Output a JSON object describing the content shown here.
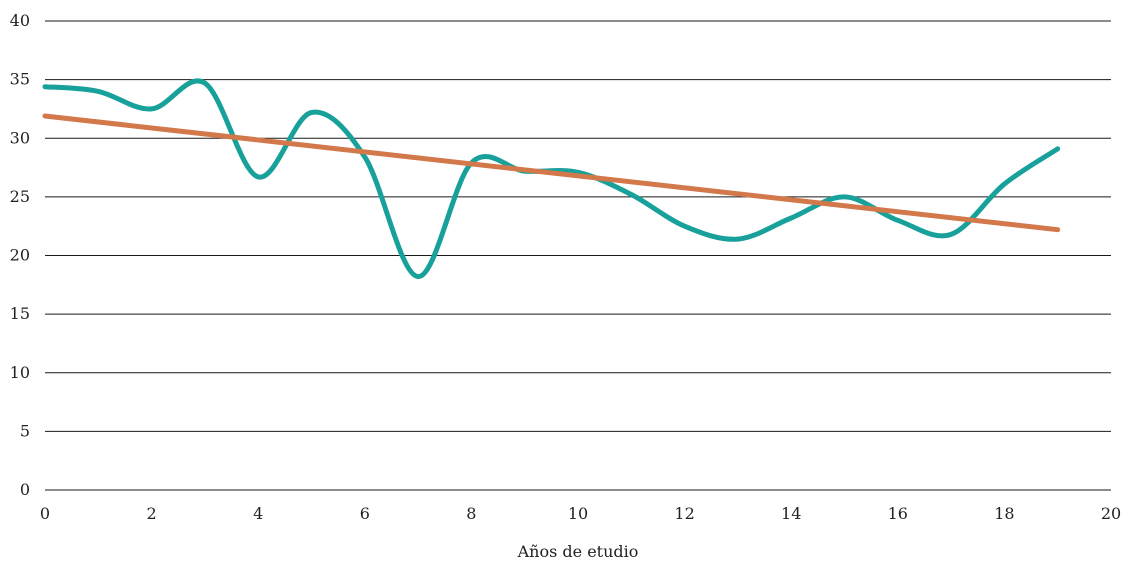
{
  "chart_data": {
    "type": "line",
    "title": "",
    "xlabel": "Años de etudio",
    "ylabel": "",
    "xlim": [
      0,
      20
    ],
    "ylim": [
      0,
      40
    ],
    "x_ticks": [
      0,
      2,
      4,
      6,
      8,
      10,
      12,
      14,
      16,
      18,
      20
    ],
    "y_ticks": [
      0,
      5,
      10,
      15,
      20,
      25,
      30,
      35,
      40
    ],
    "grid": "horizontal",
    "legend": "none",
    "series": [
      {
        "kind": "smooth-line",
        "color": "#18a19b",
        "x": [
          0,
          1,
          2,
          3,
          4,
          5,
          6,
          7,
          8,
          9,
          10,
          11,
          12,
          13,
          14,
          15,
          16,
          17,
          18,
          19
        ],
        "values": [
          34.4,
          34.0,
          32.5,
          34.7,
          26.7,
          32.2,
          28.4,
          18.2,
          27.9,
          27.2,
          27.1,
          25.2,
          22.5,
          21.4,
          23.2,
          25.0,
          23.0,
          21.8,
          26.1,
          29.1
        ]
      },
      {
        "kind": "trend-line",
        "color": "#d2784a",
        "x": [
          0,
          19
        ],
        "values": [
          31.9,
          22.2
        ]
      }
    ]
  }
}
